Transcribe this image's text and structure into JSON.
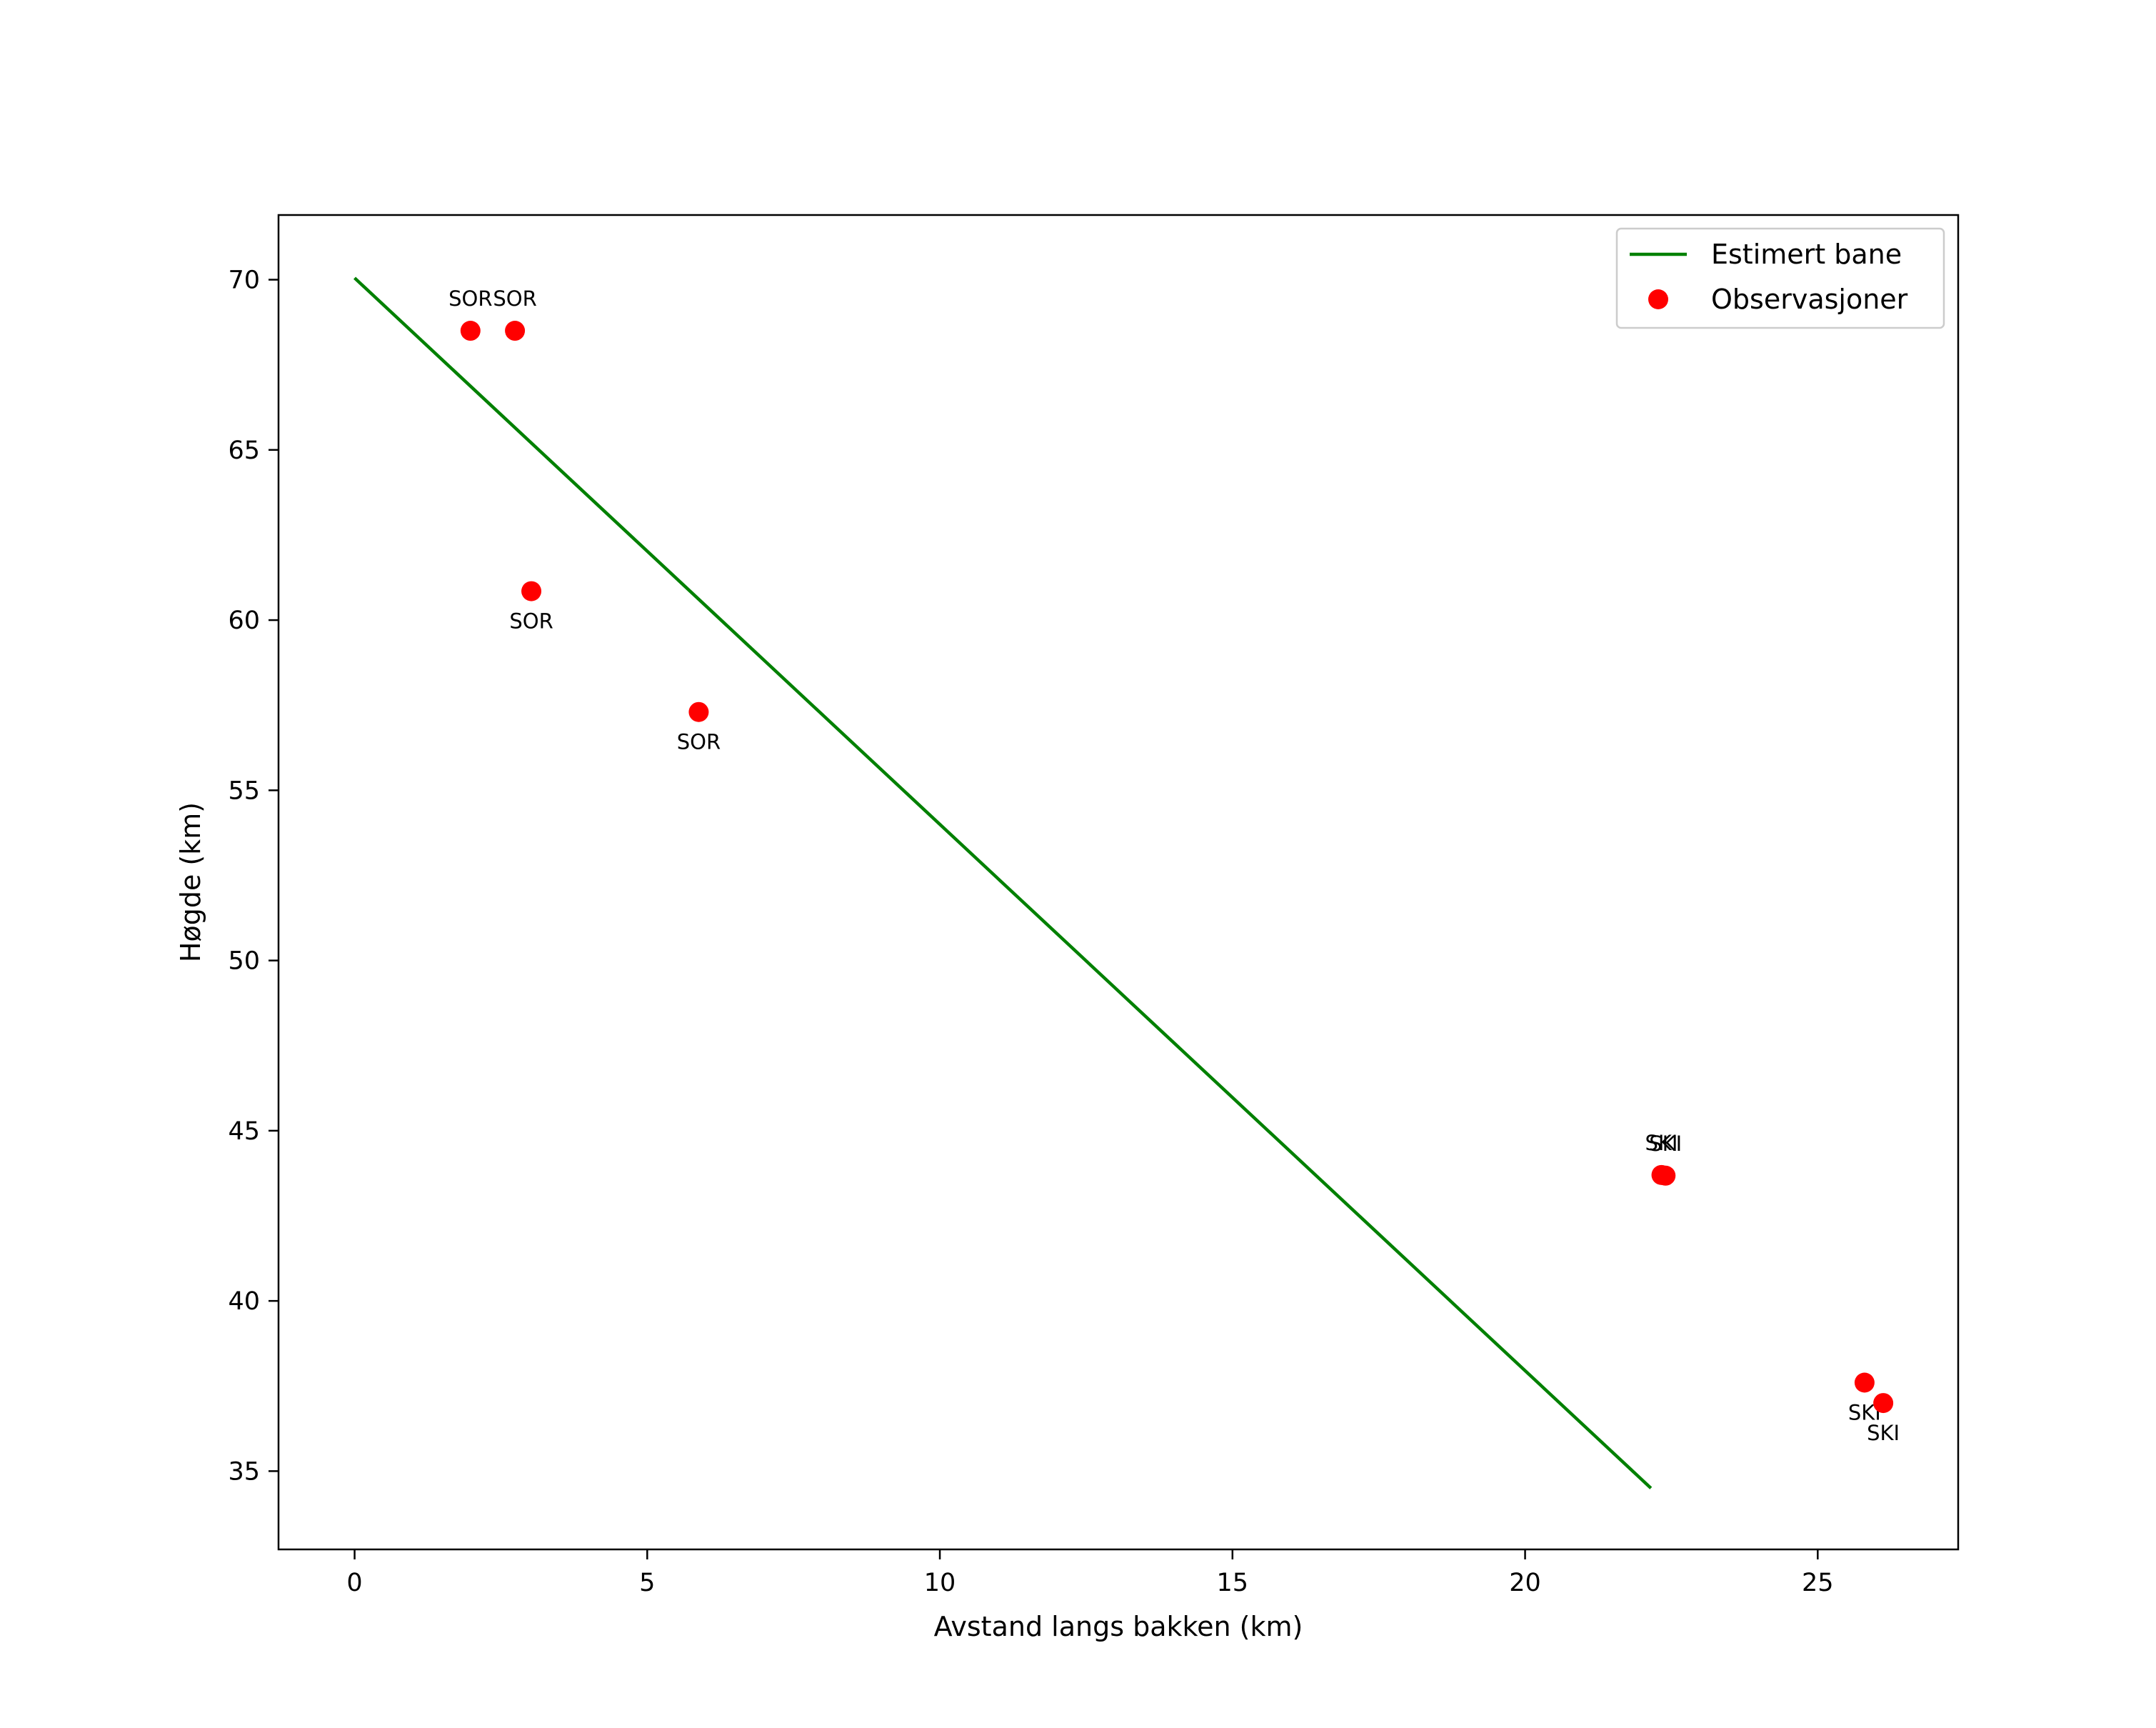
{
  "chart_data": {
    "type": "scatter",
    "title": "",
    "xlabel": "Avstand langs bakken (km)",
    "ylabel": "Høgde (km)",
    "xlim": [
      -1.3,
      27.4
    ],
    "ylim": [
      32.7,
      71.9
    ],
    "xticks": [
      0,
      5,
      10,
      15,
      20,
      25
    ],
    "yticks": [
      35,
      40,
      45,
      50,
      55,
      60,
      65,
      70
    ],
    "grid": false,
    "legend_position": "top-right",
    "colors": {
      "line": "#008000",
      "points": "#ff0000",
      "axes": "#000000"
    },
    "series": [
      {
        "name": "Estimert bane",
        "kind": "line",
        "x": [
          0,
          22.15
        ],
        "y": [
          70.05,
          34.5
        ]
      },
      {
        "name": "Observasjoner",
        "kind": "scatter",
        "points": [
          {
            "x": 1.98,
            "y": 68.5,
            "label": "SOR",
            "label_side": "above"
          },
          {
            "x": 2.74,
            "y": 68.5,
            "label": "SOR",
            "label_side": "above"
          },
          {
            "x": 3.02,
            "y": 60.85,
            "label": "SOR",
            "label_side": "below"
          },
          {
            "x": 5.88,
            "y": 57.3,
            "label": "SOR",
            "label_side": "below"
          },
          {
            "x": 22.33,
            "y": 43.7,
            "label": "SKI",
            "label_side": "above"
          },
          {
            "x": 22.4,
            "y": 43.68,
            "label": "SKI",
            "label_side": "above"
          },
          {
            "x": 25.8,
            "y": 37.6,
            "label": "SKI",
            "label_side": "below"
          },
          {
            "x": 26.12,
            "y": 37.0,
            "label": "SKI",
            "label_side": "below"
          }
        ]
      }
    ]
  }
}
